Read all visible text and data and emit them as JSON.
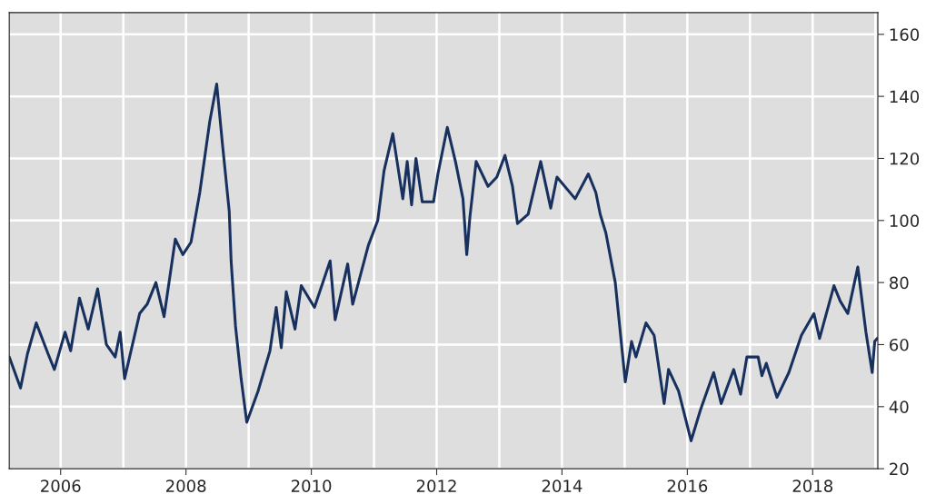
{
  "chart_data": {
    "type": "line",
    "color": "#17305e",
    "grid": true,
    "line_style": "solid",
    "xlim": [
      2005.18,
      2019.04
    ],
    "ylim": [
      20,
      167
    ],
    "xticks": [
      2006,
      2008,
      2010,
      2012,
      2014,
      2016,
      2018
    ],
    "yticks": [
      20,
      40,
      60,
      80,
      100,
      120,
      140,
      160
    ],
    "x": [
      2005.18,
      2005.36,
      2005.47,
      2005.61,
      2005.8,
      2005.9,
      2006.07,
      2006.16,
      2006.3,
      2006.44,
      2006.59,
      2006.73,
      2006.87,
      2006.95,
      2007.02,
      2007.26,
      2007.38,
      2007.52,
      2007.65,
      2007.83,
      2007.95,
      2008.08,
      2008.22,
      2008.38,
      2008.49,
      2008.58,
      2008.69,
      2008.72,
      2008.79,
      2008.88,
      2008.97,
      2009.15,
      2009.34,
      2009.44,
      2009.52,
      2009.6,
      2009.74,
      2009.84,
      2010.05,
      2010.3,
      2010.38,
      2010.58,
      2010.66,
      2010.91,
      2011.06,
      2011.16,
      2011.3,
      2011.46,
      2011.53,
      2011.6,
      2011.67,
      2011.77,
      2011.95,
      2012.02,
      2012.17,
      2012.3,
      2012.42,
      2012.48,
      2012.53,
      2012.63,
      2012.82,
      2012.96,
      2013.09,
      2013.21,
      2013.29,
      2013.46,
      2013.66,
      2013.82,
      2013.92,
      2014.21,
      2014.42,
      2014.54,
      2014.61,
      2014.7,
      2014.85,
      2015.01,
      2015.11,
      2015.18,
      2015.34,
      2015.47,
      2015.63,
      2015.7,
      2015.86,
      2016.06,
      2016.21,
      2016.42,
      2016.54,
      2016.74,
      2016.85,
      2016.95,
      2017.13,
      2017.19,
      2017.26,
      2017.43,
      2017.62,
      2017.82,
      2018.02,
      2018.11,
      2018.34,
      2018.44,
      2018.56,
      2018.72,
      2018.85,
      2018.95,
      2018.99,
      2019.03
    ],
    "values": [
      56,
      46,
      57,
      67,
      57,
      52,
      64,
      58,
      75,
      65,
      78,
      60,
      56,
      64,
      49,
      70,
      73,
      80,
      69,
      94,
      89,
      93,
      109,
      132,
      144,
      125,
      103,
      87,
      66,
      49,
      35,
      45,
      58,
      72,
      59,
      77,
      65,
      79,
      72,
      87,
      68,
      86,
      73,
      92,
      100,
      116,
      128,
      107,
      119,
      105,
      120,
      106,
      106,
      115,
      130,
      119,
      107,
      89,
      101,
      119,
      111,
      114,
      121,
      111,
      99,
      102,
      119,
      104,
      114,
      107,
      115,
      109,
      102,
      96,
      80,
      48,
      61,
      56,
      67,
      63,
      41,
      52,
      45,
      29,
      39,
      51,
      41,
      52,
      44,
      56,
      56,
      50,
      54,
      43,
      51,
      63,
      70,
      62,
      79,
      74,
      70,
      85,
      64,
      51,
      61,
      62
    ]
  }
}
